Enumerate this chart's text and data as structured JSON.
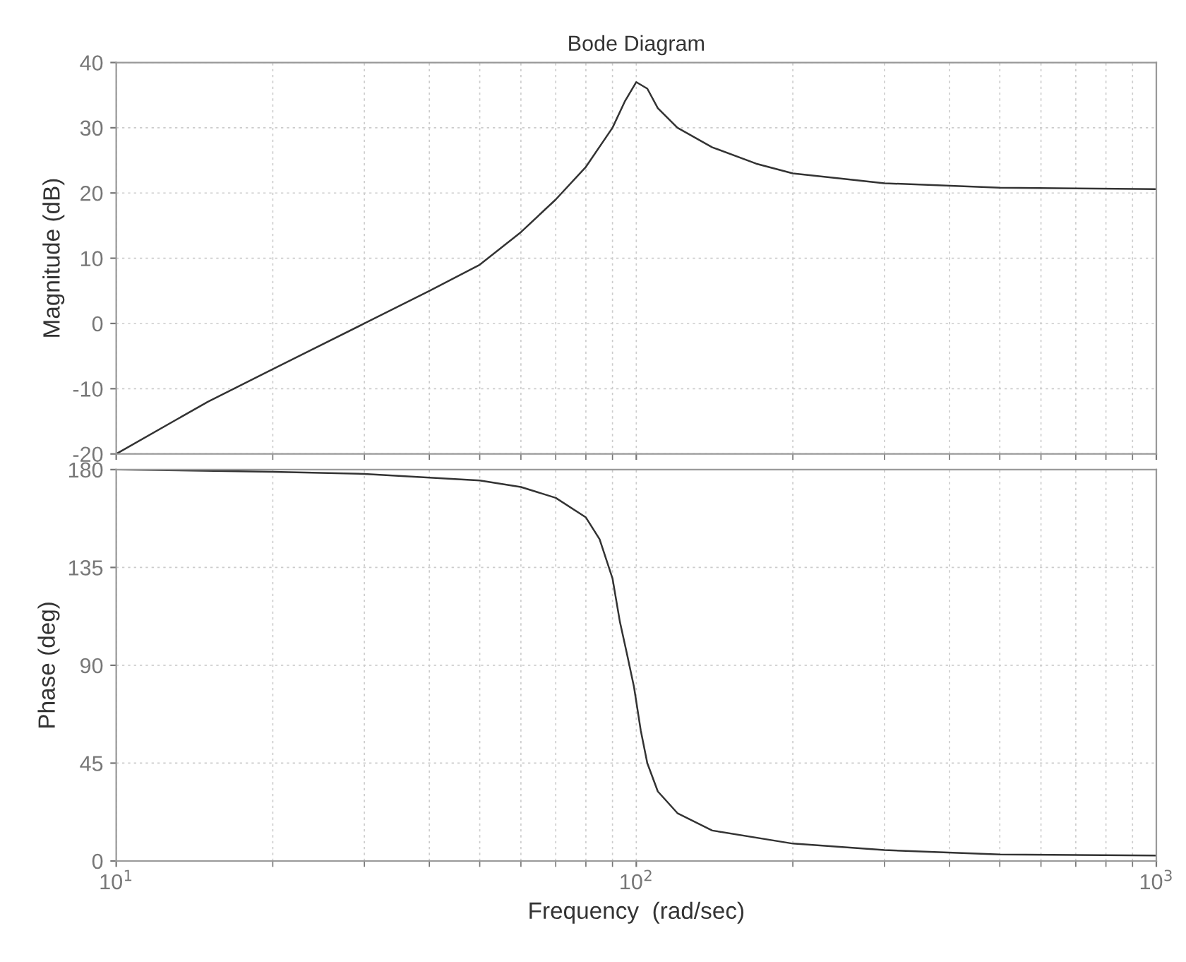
{
  "chart_data": [
    {
      "type": "line",
      "title": "Bode Diagram",
      "ylabel": "Magnitude (dB)",
      "log": "x",
      "xlim": [
        10,
        1000
      ],
      "xticks": [
        {
          "value": 10,
          "label": null
        },
        {
          "value": 100,
          "label": null
        },
        {
          "value": 1000,
          "label": null
        }
      ],
      "ylim": [
        -20,
        40
      ],
      "yticks": [
        -20,
        -10,
        0,
        10,
        20,
        30,
        40
      ],
      "grid": true,
      "tick_labels": "y",
      "series": [
        {
          "color": "#333333",
          "x": [
            10,
            15,
            20,
            30,
            40,
            50,
            60,
            70,
            80,
            90,
            95,
            100,
            105,
            110,
            120,
            140,
            170,
            200,
            300,
            500,
            700,
            1000
          ],
          "values": [
            -20,
            -12,
            -7,
            0,
            5,
            9,
            14,
            19,
            24,
            30,
            34,
            37,
            36,
            33,
            30,
            27,
            24.5,
            23,
            21.5,
            20.8,
            20.7,
            20.6
          ]
        }
      ]
    },
    {
      "type": "line",
      "ylabel": "Phase (deg)",
      "xlabel": "Frequency  (rad/sec)",
      "log": "x",
      "xlim": [
        10,
        1000
      ],
      "xticks": [
        {
          "value": 10,
          "label": "10$^{1}$"
        },
        {
          "value": 100,
          "label": "10$^{2}$"
        },
        {
          "value": 1000,
          "label": "10$^{3}$"
        }
      ],
      "ylim": [
        0,
        180
      ],
      "yticks": [
        0,
        45,
        90,
        135,
        180
      ],
      "grid": true,
      "series": [
        {
          "color": "#333333",
          "x": [
            10,
            20,
            30,
            50,
            60,
            70,
            80,
            85,
            90,
            93,
            96,
            99,
            102,
            105,
            110,
            120,
            140,
            200,
            300,
            500,
            1000
          ],
          "values": [
            180,
            179,
            178,
            175,
            172,
            167,
            158,
            148,
            130,
            110,
            95,
            80,
            60,
            45,
            32,
            22,
            14,
            8,
            5,
            3,
            2.5
          ]
        }
      ]
    }
  ]
}
